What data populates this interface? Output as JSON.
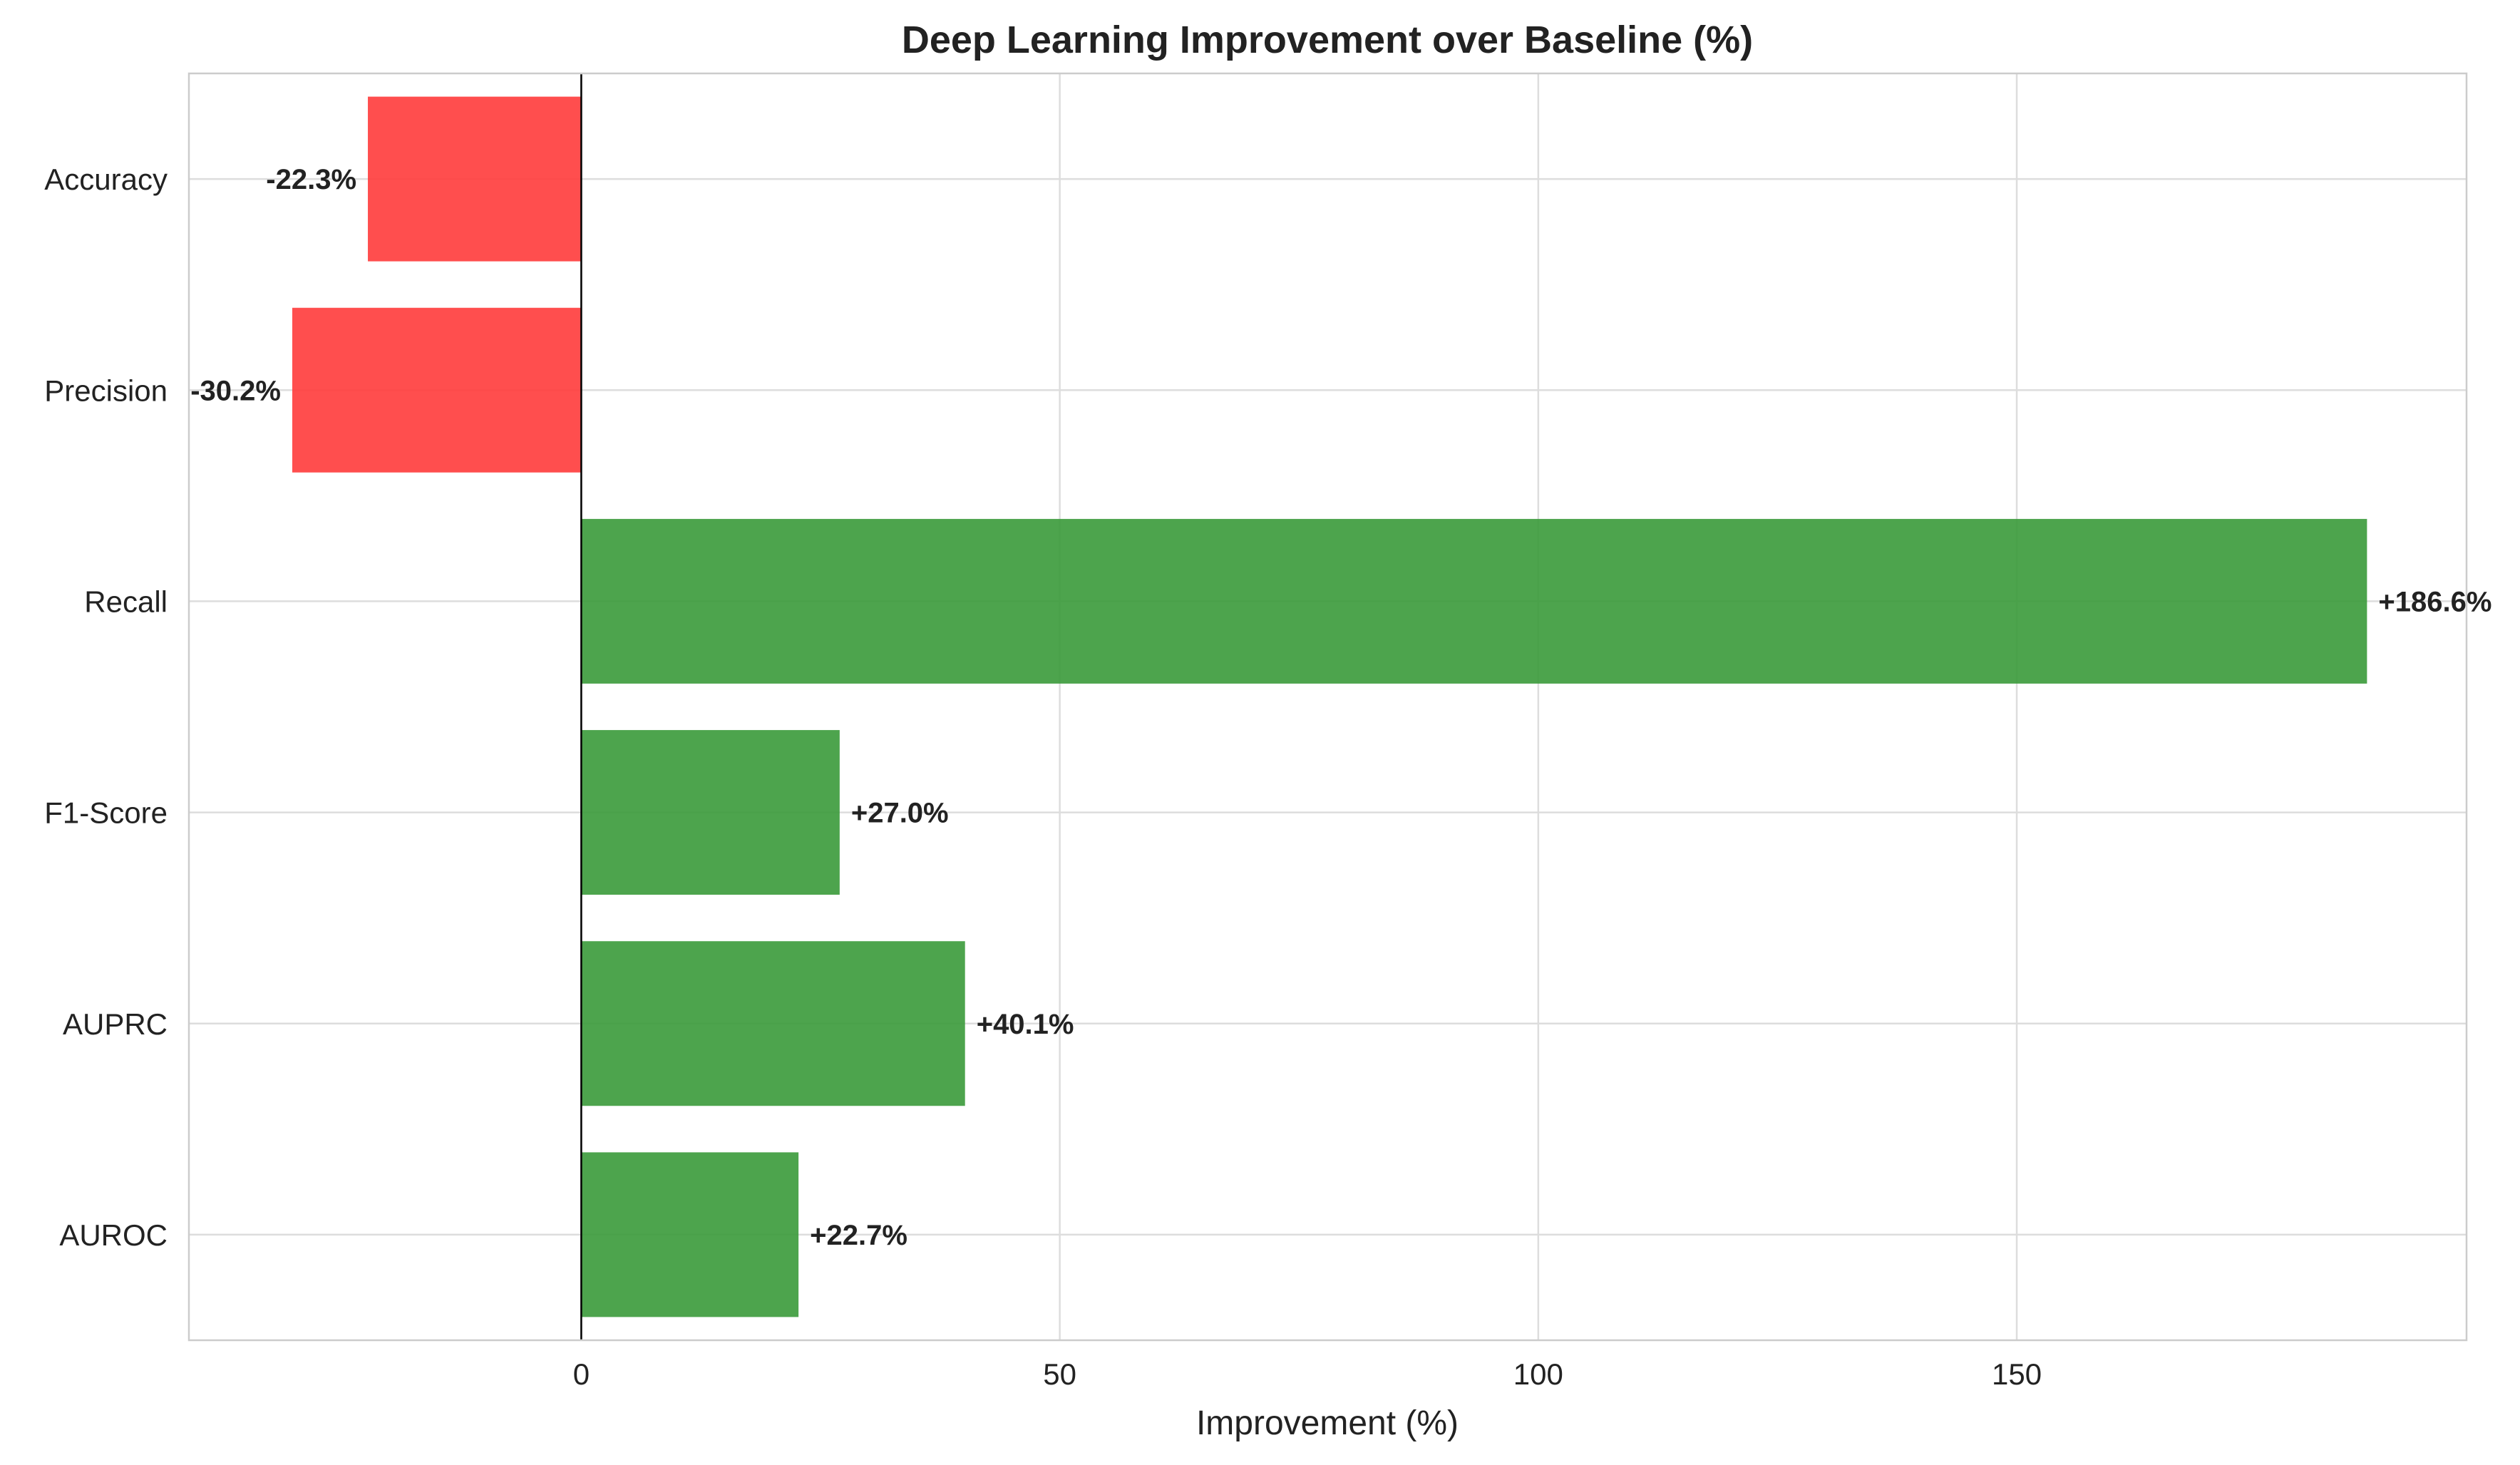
{
  "chart_data": {
    "type": "bar",
    "orientation": "horizontal",
    "title": "Deep Learning Improvement over Baseline (%)",
    "xlabel": "Improvement (%)",
    "ylabel": "",
    "categories": [
      "Accuracy",
      "Precision",
      "Recall",
      "F1-Score",
      "AUPRC",
      "AUROC"
    ],
    "values": [
      -22.3,
      -30.2,
      186.6,
      27.0,
      40.1,
      22.7
    ],
    "data_labels": [
      "-22.3%",
      "-30.2%",
      "+186.6%",
      "+27.0%",
      "+40.1%",
      "+22.7%"
    ],
    "xlim": [
      -41,
      197
    ],
    "xticks": [
      0,
      50,
      100,
      150
    ],
    "xtick_labels": [
      "0",
      "50",
      "100",
      "150"
    ],
    "grid": true,
    "legend": "none",
    "colors": {
      "positive": "#3a9a3a",
      "negative": "#ff3b3b",
      "zero_line": "#000000",
      "grid": "#dddddd",
      "frame": "#cccccc"
    }
  }
}
